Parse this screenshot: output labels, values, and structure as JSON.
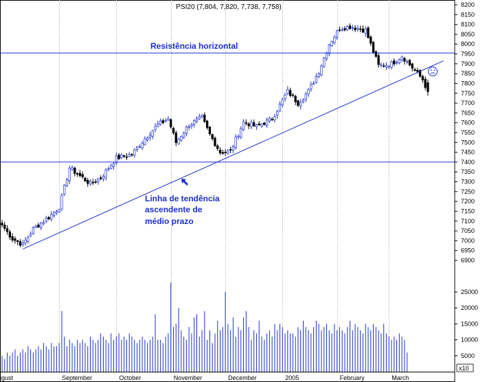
{
  "chart_data": {
    "type": "candlestick",
    "title": "PSI20 (7,804, 7,820, 7,738, 7,758)",
    "colors": {
      "series": "#1a2fd0",
      "up": "#ffffff",
      "down": "#000000",
      "grid": "#9a9a9a",
      "annotation": "#1a2fd0"
    },
    "price_axis": {
      "min": 6900,
      "max": 8200,
      "step": 50,
      "ticks": [
        "8200",
        "8150",
        "8100",
        "8050",
        "8000",
        "7950",
        "7900",
        "7850",
        "7800",
        "7750",
        "7700",
        "7650",
        "7600",
        "7550",
        "7500",
        "7450",
        "7400",
        "7350",
        "7300",
        "7250",
        "7200",
        "7150",
        "7100",
        "7050",
        "7000",
        "6950",
        "6900"
      ]
    },
    "volume_axis": {
      "min": 0,
      "max": 25000,
      "ticks": [
        "25000",
        "20000",
        "15000",
        "10000",
        "5000"
      ],
      "unit_label": "x10"
    },
    "months": [
      "August",
      "September",
      "October",
      "November",
      "December",
      "2005",
      "February",
      "March"
    ],
    "month_start_bars": [
      0,
      22,
      44,
      65,
      86,
      108,
      129,
      149
    ],
    "grid": true,
    "horizontal_levels": [
      {
        "name": "Resistência horizontal",
        "value": 7955
      },
      {
        "value": 7400
      }
    ],
    "trendline": {
      "from": {
        "bar": 8,
        "value": 6958
      },
      "to": {
        "bar": 170,
        "value": 7915
      }
    },
    "annotations": {
      "resistance": "Resistência horizontal",
      "trend_line1": "Linha de tendência",
      "trend_line2": "ascendente de",
      "trend_line3": "médio prazo",
      "sad_face_icon": "sad-face-icon",
      "arrow_icon": "arrow-up-left-icon"
    },
    "close_anchors": [
      [
        0,
        7080
      ],
      [
        4,
        7010
      ],
      [
        8,
        6980
      ],
      [
        12,
        7060
      ],
      [
        18,
        7120
      ],
      [
        22,
        7170
      ],
      [
        26,
        7370
      ],
      [
        30,
        7330
      ],
      [
        34,
        7290
      ],
      [
        38,
        7320
      ],
      [
        44,
        7420
      ],
      [
        50,
        7440
      ],
      [
        55,
        7520
      ],
      [
        60,
        7590
      ],
      [
        64,
        7620
      ],
      [
        67,
        7500
      ],
      [
        72,
        7590
      ],
      [
        77,
        7625
      ],
      [
        80,
        7540
      ],
      [
        84,
        7450
      ],
      [
        88,
        7455
      ],
      [
        93,
        7605
      ],
      [
        98,
        7580
      ],
      [
        104,
        7620
      ],
      [
        110,
        7760
      ],
      [
        114,
        7700
      ],
      [
        118,
        7760
      ],
      [
        122,
        7860
      ],
      [
        126,
        8000
      ],
      [
        130,
        8080
      ],
      [
        134,
        8090
      ],
      [
        140,
        8070
      ],
      [
        145,
        7890
      ],
      [
        150,
        7900
      ],
      [
        154,
        7940
      ],
      [
        158,
        7880
      ],
      [
        162,
        7820
      ],
      [
        164,
        7758
      ]
    ],
    "volume_profile": [
      5000,
      4000,
      6000,
      5000,
      6000,
      7000,
      5000,
      6000,
      7000,
      6000,
      8000,
      7000,
      6000,
      7000,
      8000,
      7000,
      9000,
      8000,
      7000,
      9000,
      8000,
      8000,
      9000,
      19000,
      11000,
      8000,
      10000,
      9000,
      8000,
      10000,
      9000,
      10000,
      9000,
      8000,
      11000,
      10000,
      9000,
      10000,
      12000,
      11000,
      10000,
      9000,
      12000,
      10000,
      11000,
      12000,
      10000,
      11000,
      10000,
      12000,
      11000,
      10000,
      9000,
      10000,
      11000,
      10000,
      9000,
      10000,
      11000,
      18000,
      10000,
      10000,
      9000,
      11000,
      12000,
      28000,
      14000,
      15000,
      20000,
      13000,
      11000,
      10000,
      14000,
      12000,
      17000,
      18000,
      11000,
      13000,
      19000,
      10000,
      13000,
      9000,
      12000,
      16000,
      13000,
      14000,
      25000,
      15000,
      13000,
      17000,
      11000,
      14000,
      13000,
      17000,
      19000,
      14000,
      10000,
      13000,
      12000,
      16000,
      11000,
      10000,
      12000,
      13000,
      11000,
      15000,
      13000,
      15000,
      14000,
      12000,
      13000,
      12000,
      12000,
      11000,
      14000,
      13000,
      16000,
      14000,
      13000,
      12000,
      14000,
      16000,
      15000,
      13000,
      14000,
      15000,
      13000,
      12000,
      15000,
      13000,
      14000,
      13000,
      12000,
      14000,
      16000,
      13000,
      15000,
      14000,
      13000,
      12000,
      15000,
      14000,
      13000,
      15000,
      14000,
      13000,
      12000,
      15000,
      12000,
      11000,
      10000,
      11000,
      10000,
      12000,
      11000,
      10000,
      6000
    ]
  }
}
